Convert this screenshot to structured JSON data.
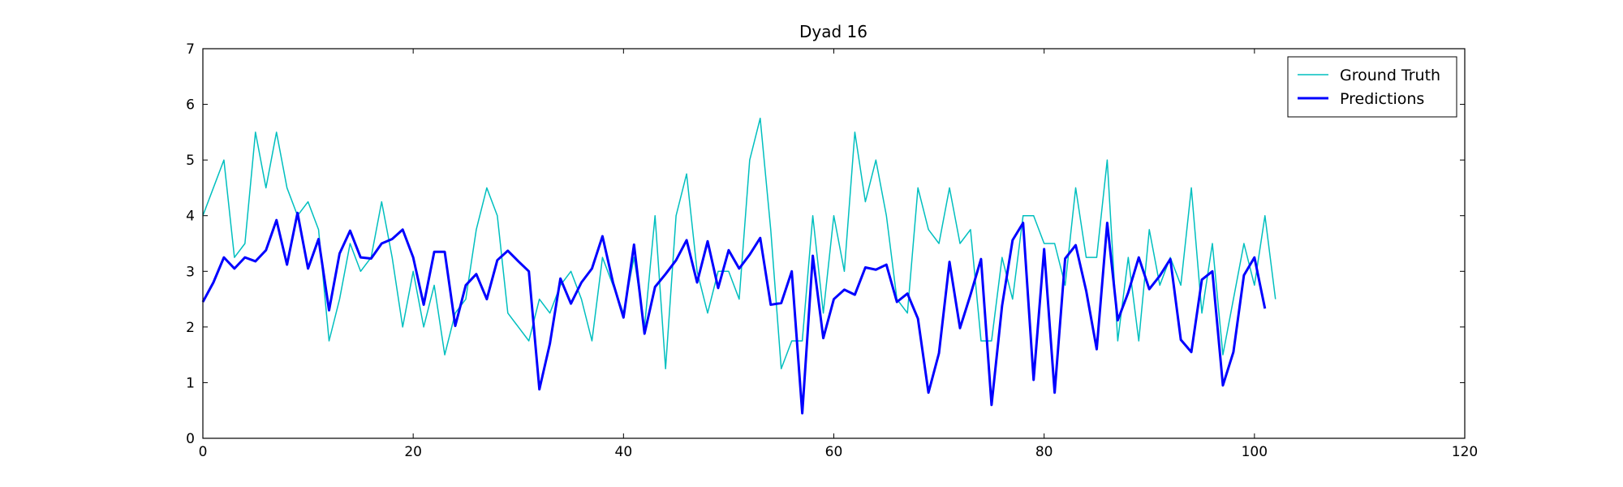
{
  "chart_data": {
    "type": "line",
    "title": "Dyad 16",
    "xlim": [
      0,
      120
    ],
    "xticks": [
      0,
      20,
      40,
      60,
      80,
      100,
      120
    ],
    "ylim": [
      0,
      7
    ],
    "yticks": [
      0,
      1,
      2,
      3,
      4,
      5,
      6,
      7
    ],
    "legend": "upper right",
    "series": [
      {
        "name": "Ground Truth",
        "color": "#00bfbf",
        "width": 1.5,
        "x": [
          0,
          1,
          2,
          3,
          4,
          5,
          6,
          7,
          8,
          9,
          10,
          11,
          12,
          13,
          14,
          15,
          16,
          17,
          18,
          19,
          20,
          21,
          22,
          23,
          24,
          25,
          26,
          27,
          28,
          29,
          30,
          31,
          32,
          33,
          34,
          35,
          36,
          37,
          38,
          39,
          40,
          41,
          42,
          43,
          44,
          45,
          46,
          47,
          48,
          49,
          50,
          51,
          52,
          53,
          54,
          55,
          56,
          57,
          58,
          59,
          60,
          61,
          62,
          63,
          64,
          65,
          66,
          67,
          68,
          69,
          70,
          71,
          72,
          73,
          74,
          75,
          76,
          77,
          78,
          79,
          80,
          81,
          82,
          83,
          84,
          85,
          86,
          87,
          88,
          89,
          90,
          91,
          92,
          93,
          94,
          95,
          96,
          97,
          98,
          99,
          100,
          101,
          102
        ],
        "values": [
          4.0,
          4.5,
          5.0,
          3.25,
          3.5,
          5.5,
          4.5,
          5.5,
          4.5,
          4.0,
          4.25,
          3.75,
          1.75,
          2.5,
          3.5,
          3.0,
          3.25,
          4.25,
          3.25,
          2.0,
          3.0,
          2.0,
          2.75,
          1.5,
          2.25,
          2.5,
          3.75,
          4.5,
          4.0,
          2.25,
          2.0,
          1.75,
          2.5,
          2.25,
          2.75,
          3.0,
          2.5,
          1.75,
          3.25,
          2.75,
          2.25,
          3.25,
          2.0,
          4.0,
          1.25,
          4.0,
          4.75,
          3.0,
          2.25,
          3.0,
          3.0,
          2.5,
          5.0,
          5.75,
          3.75,
          1.25,
          1.75,
          1.75,
          4.0,
          2.25,
          4.0,
          3.0,
          5.5,
          4.25,
          5.0,
          4.0,
          2.5,
          2.25,
          4.5,
          3.75,
          3.5,
          4.5,
          3.5,
          3.75,
          1.75,
          1.75,
          3.25,
          2.5,
          4.0,
          4.0,
          3.5,
          3.5,
          2.75,
          4.5,
          3.25,
          3.25,
          5.0,
          1.75,
          3.25,
          1.75,
          3.75,
          2.75,
          3.25,
          2.75,
          4.5,
          2.25,
          3.5,
          1.5,
          2.5,
          3.5,
          2.75,
          4.0,
          2.5
        ]
      },
      {
        "name": "Predictions",
        "color": "#0000ff",
        "width": 3,
        "x": [
          0,
          1,
          2,
          3,
          4,
          5,
          6,
          7,
          8,
          9,
          10,
          11,
          12,
          13,
          14,
          15,
          16,
          17,
          18,
          19,
          20,
          21,
          22,
          23,
          24,
          25,
          26,
          27,
          28,
          29,
          30,
          31,
          32,
          33,
          34,
          35,
          36,
          37,
          38,
          39,
          40,
          41,
          42,
          43,
          44,
          45,
          46,
          47,
          48,
          49,
          50,
          51,
          52,
          53,
          54,
          55,
          56,
          57,
          58,
          59,
          60,
          61,
          62,
          63,
          64,
          65,
          66,
          67,
          68,
          69,
          70,
          71,
          72,
          73,
          74,
          75,
          76,
          77,
          78,
          79,
          80,
          81,
          82,
          83,
          84,
          85,
          86,
          87,
          88,
          89,
          90,
          91,
          92,
          93,
          94,
          95,
          96,
          97,
          98,
          99,
          100,
          101
        ],
        "values": [
          2.45,
          2.8,
          3.25,
          3.05,
          3.25,
          3.18,
          3.38,
          3.92,
          3.12,
          4.05,
          3.05,
          3.58,
          2.3,
          3.32,
          3.73,
          3.25,
          3.23,
          3.5,
          3.58,
          3.75,
          3.25,
          2.4,
          3.35,
          3.35,
          2.02,
          2.75,
          2.95,
          2.5,
          3.2,
          3.37,
          3.18,
          3.0,
          0.88,
          1.7,
          2.87,
          2.42,
          2.8,
          3.05,
          3.63,
          2.8,
          2.17,
          3.48,
          1.88,
          2.72,
          2.95,
          3.2,
          3.56,
          2.8,
          3.54,
          2.7,
          3.38,
          3.05,
          3.3,
          3.6,
          2.4,
          2.43,
          3.0,
          0.45,
          3.28,
          1.8,
          2.5,
          2.67,
          2.58,
          3.07,
          3.03,
          3.12,
          2.45,
          2.6,
          2.15,
          0.82,
          1.53,
          3.17,
          1.98,
          2.58,
          3.22,
          0.6,
          2.38,
          3.56,
          3.87,
          1.05,
          3.4,
          0.82,
          3.23,
          3.47,
          2.65,
          1.6,
          3.87,
          2.12,
          2.62,
          3.25,
          2.68,
          2.92,
          3.22,
          1.77,
          1.55,
          2.85,
          3.0,
          0.95,
          1.55,
          2.93,
          3.25,
          2.33
        ]
      }
    ]
  }
}
